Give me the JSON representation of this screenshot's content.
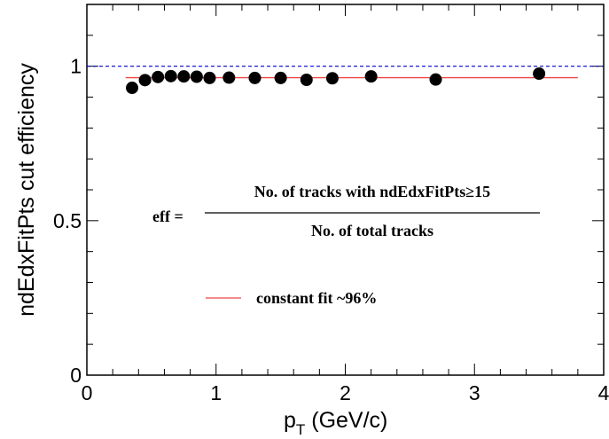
{
  "chart_data": {
    "type": "scatter",
    "title": "",
    "xlabel_main": "p",
    "xlabel_sub": "T",
    "xlabel_rest": " (GeV/c)",
    "ylabel": "ndEdxFitPts cut efficiency",
    "xlim": [
      0,
      4
    ],
    "ylim": [
      0,
      1.2
    ],
    "x_ticks": [
      {
        "value": 0,
        "label": "0"
      },
      {
        "value": 1,
        "label": "1"
      },
      {
        "value": 2,
        "label": "2"
      },
      {
        "value": 3,
        "label": "3"
      },
      {
        "value": 4,
        "label": "4"
      }
    ],
    "y_ticks": [
      {
        "value": 0,
        "label": "0"
      },
      {
        "value": 0.5,
        "label": "0.5"
      },
      {
        "value": 1,
        "label": "1"
      }
    ],
    "grid": false,
    "series": [
      {
        "marker": "filled-circle",
        "color": "#000000",
        "x": [
          0.35,
          0.45,
          0.55,
          0.65,
          0.75,
          0.85,
          0.95,
          1.1,
          1.3,
          1.5,
          1.7,
          1.9,
          2.2,
          2.7,
          3.5
        ],
        "y": [
          0.93,
          0.955,
          0.965,
          0.968,
          0.967,
          0.966,
          0.962,
          0.963,
          0.962,
          0.962,
          0.956,
          0.961,
          0.967,
          0.957,
          0.976
        ]
      }
    ],
    "reference_line": {
      "y": 1.0,
      "style": "dashed",
      "color": "#0000cc"
    },
    "fit_line": {
      "y": 0.963,
      "x_range": [
        0.3,
        3.8
      ],
      "color": "#ee4444"
    },
    "formula": {
      "lhs": "eff =",
      "numerator": "No. of tracks with ndEdxFitPts≥15",
      "denominator": "No. of total tracks"
    },
    "legend": {
      "entry": "constant fit ~96%",
      "color": "#ee4444",
      "placement": "center"
    }
  }
}
